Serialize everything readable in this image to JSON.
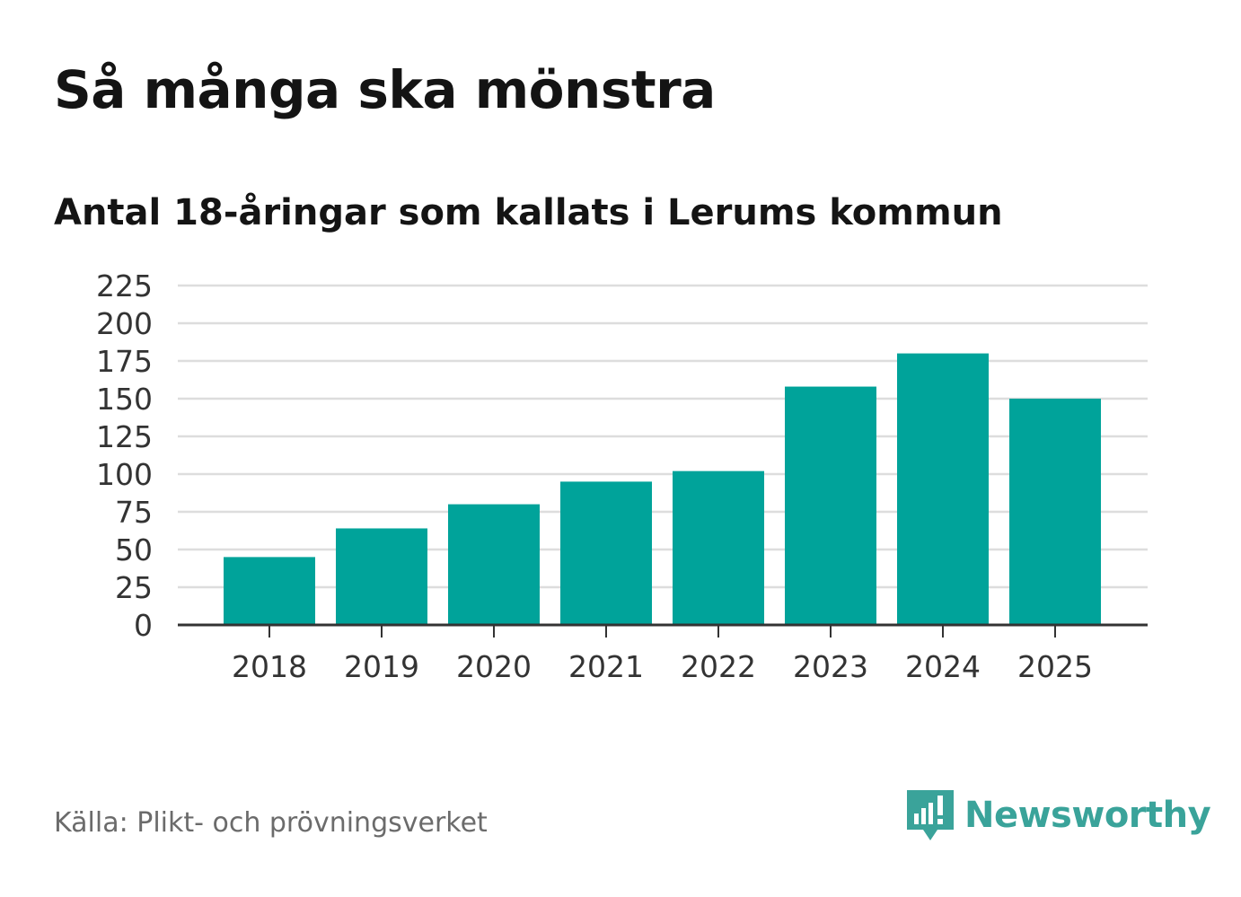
{
  "chart_data": {
    "type": "bar",
    "title": "Så många ska mönstra",
    "subtitle": "Antal 18-åringar som kallats i Lerums kommun",
    "xlabel": "",
    "ylabel": "",
    "categories": [
      "2018",
      "2019",
      "2020",
      "2021",
      "2022",
      "2023",
      "2024",
      "2025"
    ],
    "values": [
      45,
      64,
      80,
      95,
      102,
      158,
      180,
      150
    ],
    "ylim": [
      0,
      225
    ],
    "yticks": [
      0,
      25,
      50,
      75,
      100,
      125,
      150,
      175,
      200,
      225
    ],
    "grid": true,
    "legend": "none"
  },
  "colors": {
    "bar": "#00a39a",
    "grid": "#dddddd",
    "axis": "#333333",
    "brand": "#3aa39a"
  },
  "footer": {
    "source": "Källa: Plikt- och prövningsverket",
    "brand": "Newsworthy",
    "brand_icon": "newsworthy-logo-icon"
  }
}
